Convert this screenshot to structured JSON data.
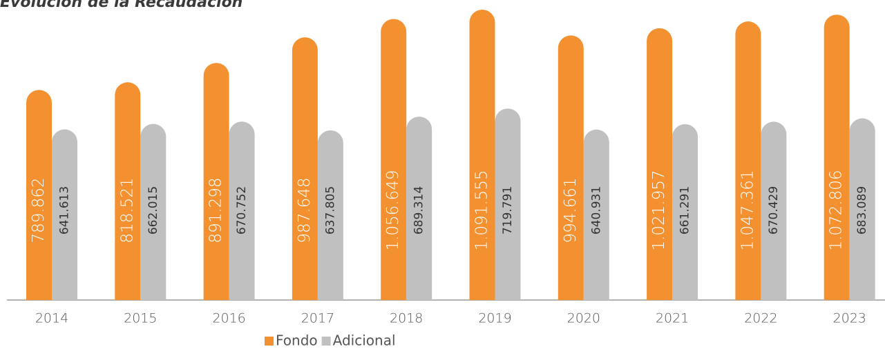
{
  "chart_data": {
    "type": "bar",
    "title": "Evolución de la Recaudación",
    "categories": [
      "2014",
      "2015",
      "2016",
      "2017",
      "2018",
      "2019",
      "2020",
      "2021",
      "2022",
      "2023"
    ],
    "series": [
      {
        "name": "Fondo",
        "color": "#f39130",
        "values": [
          789862,
          818521,
          891298,
          987648,
          1056649,
          1091555,
          994661,
          1021957,
          1047361,
          1072806
        ],
        "value_labels": [
          "789.862",
          "818.521",
          "891.298",
          "987.648",
          "1.056.649",
          "1.091.555",
          "994.661",
          "1.021.957",
          "1.047.361",
          "1.072.806"
        ]
      },
      {
        "name": "Adicional",
        "color": "#c0c0c0",
        "values": [
          641613,
          662015,
          670752,
          637805,
          689314,
          719791,
          640931,
          661291,
          670429,
          683089
        ],
        "value_labels": [
          "641.613",
          "662.015",
          "670.752",
          "637.805",
          "689.314",
          "719.791",
          "640.931",
          "661.291",
          "670.429",
          "683.089"
        ]
      }
    ]
  }
}
